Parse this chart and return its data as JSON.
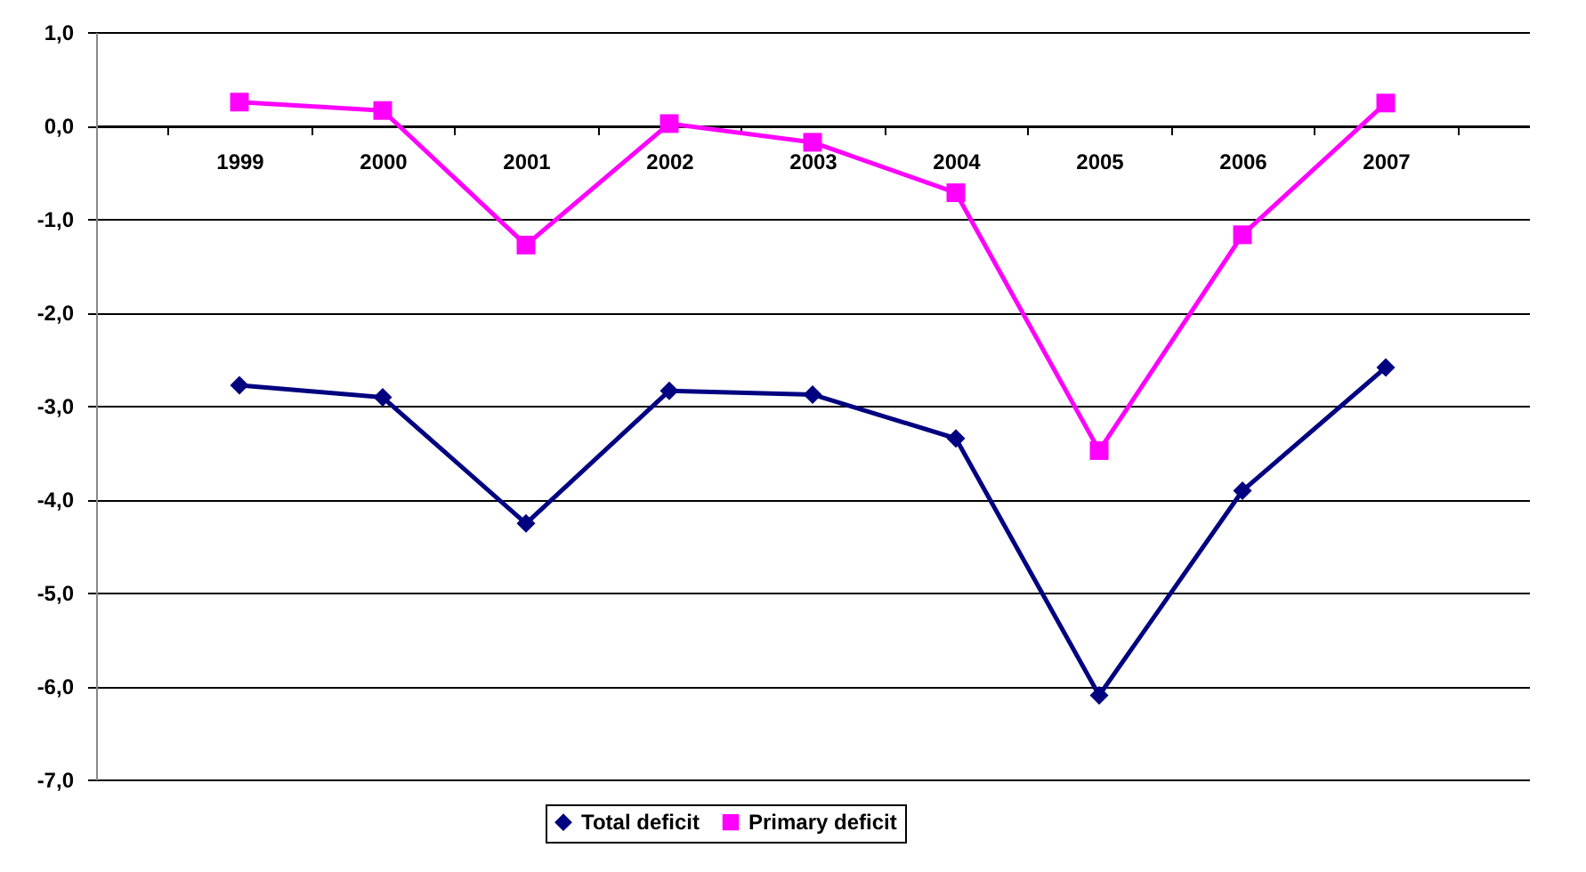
{
  "chart_data": {
    "type": "line",
    "categories": [
      "1999",
      "2000",
      "2001",
      "2002",
      "2003",
      "2004",
      "2005",
      "2006",
      "2007"
    ],
    "series": [
      {
        "name": "Total deficit",
        "color": "#000080",
        "marker": "diamond",
        "values": [
          -2.78,
          -2.91,
          -4.26,
          -2.84,
          -2.88,
          -3.35,
          -6.1,
          -3.91,
          -2.59
        ]
      },
      {
        "name": "Primary deficit",
        "color": "#ff00ff",
        "marker": "square",
        "values": [
          0.25,
          0.16,
          -1.28,
          0.02,
          -0.18,
          -0.72,
          -3.48,
          -1.17,
          0.24
        ]
      }
    ],
    "ylim": [
      -7,
      1
    ],
    "yticks": [
      {
        "value": -7,
        "label": "-7,0"
      },
      {
        "value": -6,
        "label": "-6,0"
      },
      {
        "value": -5,
        "label": "-5,0"
      },
      {
        "value": -4,
        "label": "-4,0"
      },
      {
        "value": -3,
        "label": "-3,0"
      },
      {
        "value": -2,
        "label": "-2,0"
      },
      {
        "value": -1,
        "label": "-1,0"
      },
      {
        "value": 0,
        "label": "0,0"
      },
      {
        "value": 1,
        "label": "1,0"
      }
    ],
    "grid": "y",
    "legend": "bottom",
    "line_style": "solid"
  }
}
